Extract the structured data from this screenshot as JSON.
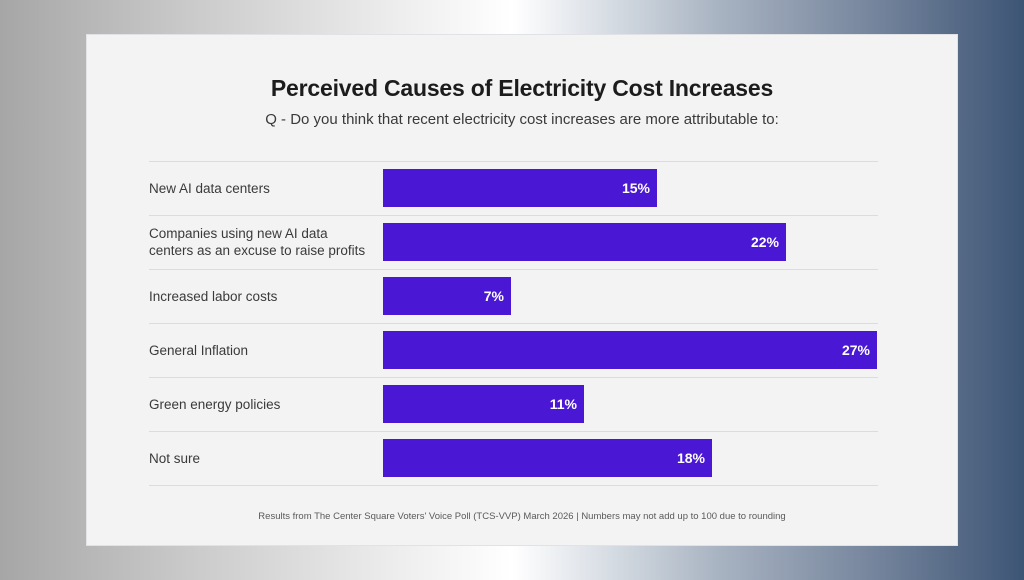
{
  "background": {
    "gradient_colors": [
      "#a6a6a6",
      "#ffffff",
      "#3d5575"
    ]
  },
  "chart_data": {
    "type": "bar",
    "orientation": "horizontal",
    "title": "Perceived Causes of Electricity Cost Increases",
    "subtitle": "Q - Do you think that recent electricity cost increases are more attributable to:",
    "categories": [
      "New AI data centers",
      "Companies using new AI data centers as an excuse to raise profits",
      "Increased labor costs",
      "General Inflation",
      "Green energy policies",
      "Not sure"
    ],
    "values": [
      15,
      22,
      7,
      27,
      11,
      18
    ],
    "value_labels": [
      "15%",
      "22%",
      "7%",
      "27%",
      "11%",
      "18%"
    ],
    "unit": "%",
    "xlabel": "",
    "ylabel": "",
    "xlim": [
      0,
      27
    ],
    "grid": false,
    "legend": "none",
    "bar_color": "#4a18d4",
    "footnote": "Results from The Center Square Voters' Voice Poll (TCS-VVP) March 2026 | Numbers may not add up to 100 due to rounding"
  }
}
